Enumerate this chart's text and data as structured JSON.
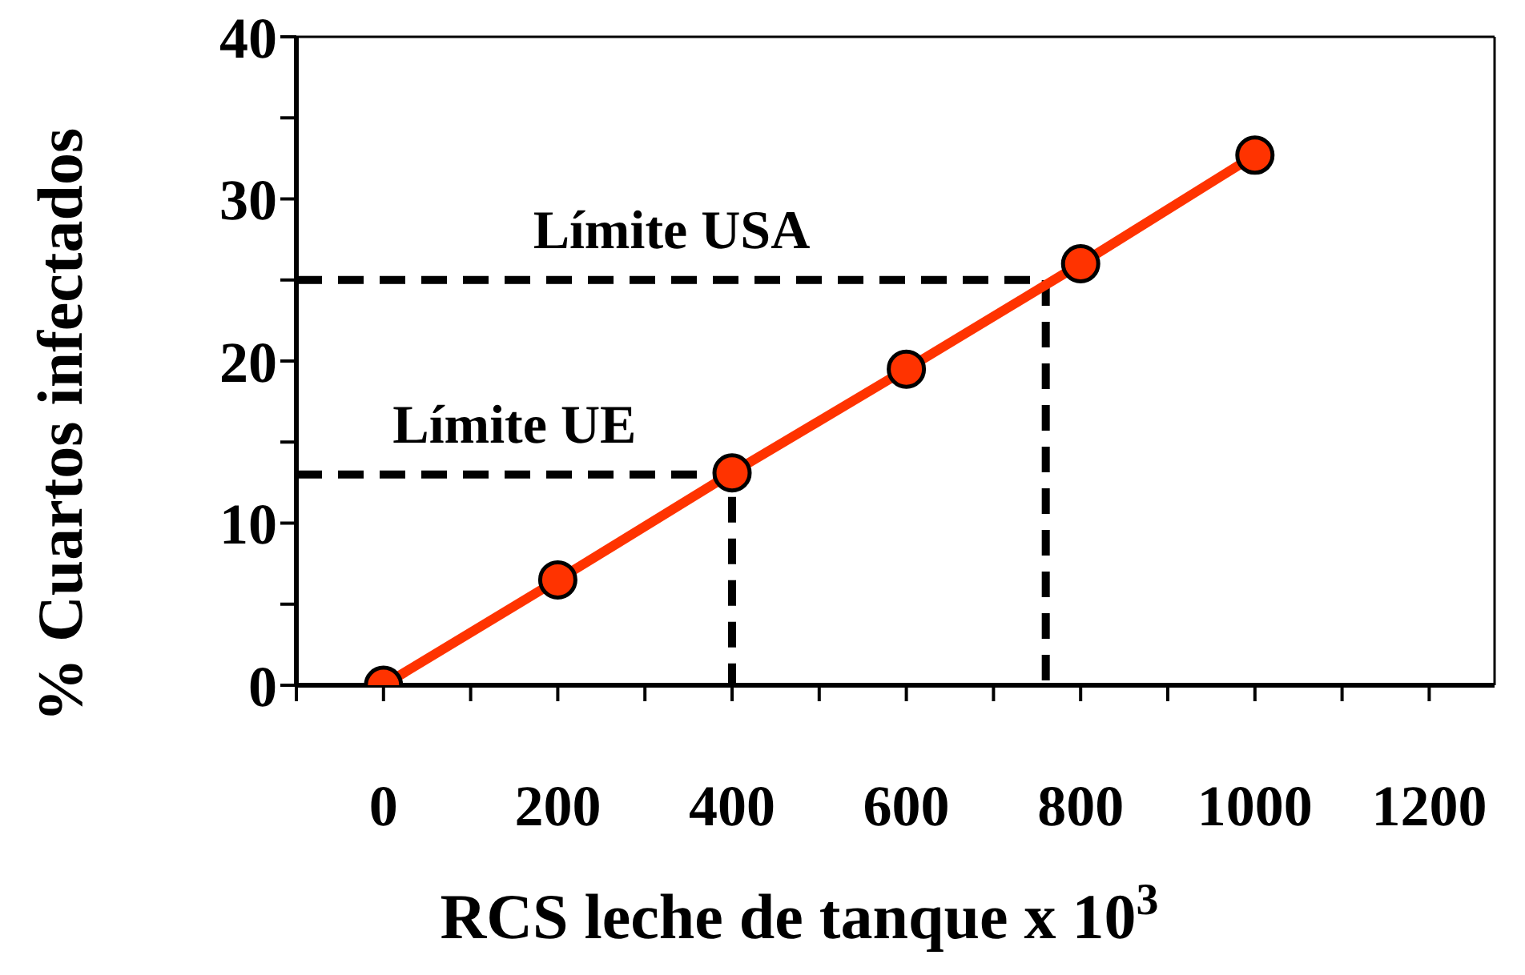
{
  "chart_data": {
    "type": "line",
    "xlabel": "RCS leche de tanque x 10$^{3}$",
    "ylabel": "% Cuartos infectados",
    "xlim": [
      -100,
      1275
    ],
    "ylim": [
      0,
      40
    ],
    "xticks": [
      {
        "value": -100,
        "label": null
      },
      0,
      {
        "value": 100,
        "label": null
      },
      200,
      {
        "value": 300,
        "label": null
      },
      400,
      {
        "value": 500,
        "label": null
      },
      600,
      {
        "value": 700,
        "label": null
      },
      800,
      {
        "value": 900,
        "label": null
      },
      1000,
      {
        "value": 1100,
        "label": null
      },
      1200
    ],
    "yticks": [
      0,
      {
        "value": 5,
        "label": null
      },
      10,
      {
        "value": 15,
        "label": null
      },
      20,
      {
        "value": 25,
        "label": null
      },
      30,
      {
        "value": 35,
        "label": null
      },
      40
    ],
    "series": [
      {
        "color": "#ff3300",
        "marker": "circle",
        "line_style": "solid",
        "x": [
          0,
          200,
          400,
          600,
          800,
          1000
        ],
        "values": [
          0,
          6.5,
          13.1,
          19.5,
          26,
          32.7
        ]
      },
      {
        "name": "Límite USA",
        "color": "#000000",
        "marker": "none",
        "line_style": "dashed",
        "x": [
          -100,
          760,
          760
        ],
        "values": [
          25,
          25,
          0
        ]
      },
      {
        "name": "Límite UE",
        "color": "#000000",
        "marker": "none",
        "line_style": "dashed",
        "x": [
          -100,
          400,
          400
        ],
        "values": [
          13,
          13,
          0
        ]
      }
    ]
  }
}
